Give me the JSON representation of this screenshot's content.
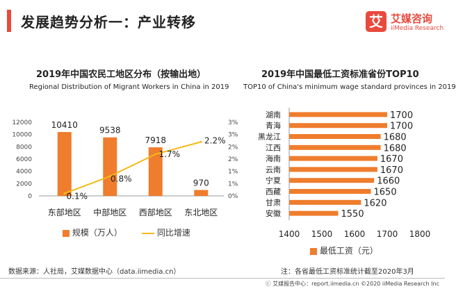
{
  "header": {
    "title": "发展趋势分析一：产业转移",
    "accent_color": "#e84a3d"
  },
  "logo": {
    "mark": "艾",
    "name_cn": "艾媒咨询",
    "name_en": "iiMedia Research",
    "color": "#e84a3d"
  },
  "left_chart": {
    "title": "2019年中国农民工地区分布（按输出地）",
    "subtitle": "Regional Distribution of Migrant Workers in China in 2019",
    "legend_bar": "规模（万人）",
    "legend_line": "同比增速"
  },
  "right_chart": {
    "title": "2019年中国最低工资标准省份TOP10",
    "subtitle": "TOP10 of China's minimum wage standard provinces in 2019",
    "legend": "最低工资（元）"
  },
  "source": "数据来源：人社局，艾媒数据中心（data.iimedia.cn）",
  "note": "注：各省最低工资标准统计截至2020年3月",
  "footer": "ⓒ 艾媒报告中心：report.iimedia.cn  ©2020  iiMedia Research  Inc",
  "chart_data": [
    {
      "type": "bar",
      "title": "2019年中国农民工地区分布（按输出地）",
      "categories": [
        "东部地区",
        "中部地区",
        "西部地区",
        "东北地区"
      ],
      "series": [
        {
          "name": "规模（万人）",
          "type": "bar",
          "values": [
            10410,
            9538,
            7918,
            970
          ],
          "labels": [
            "10410",
            "9538",
            "7918",
            "970"
          ],
          "color": "#ef7d2d"
        },
        {
          "name": "同比增速",
          "type": "line",
          "axis": "right",
          "values": [
            0.1,
            0.8,
            1.7,
            2.2
          ],
          "labels": [
            "0.1%",
            "0.8%",
            "1.7%",
            "2.2%"
          ],
          "color": "#f5b915"
        }
      ],
      "y_left": {
        "range": [
          0,
          12000
        ],
        "ticks": [
          0,
          2000,
          4000,
          6000,
          8000,
          10000,
          12000
        ],
        "tick_labels": [
          "0",
          "2000",
          "4000",
          "6000",
          "8000",
          "10000",
          "12000"
        ]
      },
      "y_right": {
        "range": [
          0,
          3
        ],
        "ticks": [
          0,
          0.5,
          1,
          1.5,
          2,
          2.5,
          3
        ],
        "tick_labels": [
          "0%",
          "1%",
          "1%",
          "2%",
          "2%",
          "3%",
          "3%"
        ]
      }
    },
    {
      "type": "bar",
      "orientation": "horizontal",
      "title": "2019年中国最低工资标准省份TOP10",
      "categories": [
        "湖南",
        "青海",
        "黑龙江",
        "江西",
        "海南",
        "云南",
        "宁夏",
        "西藏",
        "甘肃",
        "安徽"
      ],
      "values": [
        1700,
        1700,
        1680,
        1680,
        1670,
        1670,
        1660,
        1650,
        1620,
        1550
      ],
      "labels": [
        "1700",
        "1700",
        "1680",
        "1680",
        "1670",
        "1670",
        "1660",
        "1650",
        "1620",
        "1550"
      ],
      "color": "#ef7d2d",
      "x_axis": {
        "range": [
          1400,
          1800
        ],
        "ticks": [
          1400,
          1500,
          1600,
          1700,
          1800
        ],
        "tick_labels": [
          "1400",
          "1500",
          "1600",
          "1700",
          "1800"
        ]
      },
      "legend": "最低工资（元）"
    }
  ]
}
